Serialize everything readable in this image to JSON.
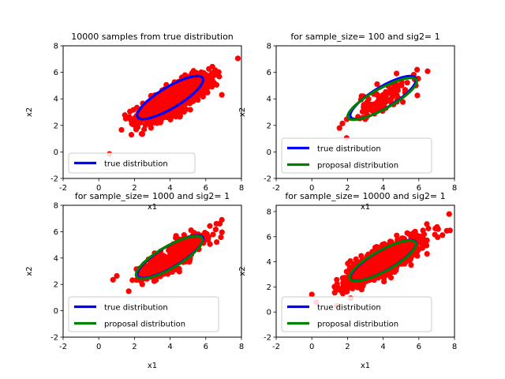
{
  "chart_data": [
    {
      "type": "scatter",
      "title": "10000 samples from true distribution",
      "xlabel": "x1",
      "ylabel": "x2",
      "xlim": [
        -2,
        8
      ],
      "ylim": [
        -2,
        8
      ],
      "xticks": [
        "-2",
        "0",
        "2",
        "4",
        "6",
        "8"
      ],
      "yticks": [
        "-2",
        "0",
        "2",
        "4",
        "6",
        "8"
      ],
      "scatter": {
        "color": "#ff0000",
        "cluster": {
          "mean": [
            4.3,
            4.1
          ],
          "sd": [
            0.95,
            0.85
          ],
          "corr": 0.82,
          "n": 1400
        },
        "outliers": [
          [
            0.6,
            -0.15
          ],
          [
            7.8,
            7.05
          ],
          [
            1.8,
            2.4
          ],
          [
            6.9,
            4.3
          ]
        ]
      },
      "series": [
        {
          "name": "true distribution",
          "color": "#0000ff",
          "ellipse": {
            "center": [
              4,
              4.1
            ],
            "rx": 2.35,
            "ry": 0.72,
            "angle_deg": 40.5
          }
        }
      ],
      "legend": "lower-left"
    },
    {
      "type": "scatter",
      "title": "for sample_size= 100 and sig2= 1",
      "xlabel": "x1",
      "ylabel": "x2",
      "xlim": [
        -2,
        8
      ],
      "ylim": [
        -2,
        8
      ],
      "xticks": [
        "-2",
        "0",
        "2",
        "4",
        "6",
        "8"
      ],
      "yticks": [
        "-2",
        "0",
        "2",
        "4",
        "6",
        "8"
      ],
      "scatter": {
        "color": "#ff0000",
        "cluster": {
          "mean": [
            4.1,
            4.0
          ],
          "sd": [
            1.0,
            0.9
          ],
          "corr": 0.8,
          "n": 100
        },
        "outliers": [
          [
            1.95,
            1.05
          ],
          [
            1.55,
            1.8
          ]
        ]
      },
      "series": [
        {
          "name": "true distribution",
          "color": "#0000ff",
          "ellipse": {
            "center": [
              4,
              4.1
            ],
            "rx": 2.35,
            "ry": 0.72,
            "angle_deg": 40.5
          }
        },
        {
          "name": "proposal distribution",
          "color": "#008000",
          "ellipse": {
            "center": [
              3.95,
              4.0
            ],
            "rx": 2.4,
            "ry": 0.7,
            "angle_deg": 38
          }
        }
      ],
      "legend": "lower-left"
    },
    {
      "type": "scatter",
      "title": "for sample_size= 1000 and sig2= 1",
      "xlabel": "x1",
      "ylabel": "x2",
      "xlim": [
        -2,
        8
      ],
      "ylim": [
        -2,
        8
      ],
      "xticks": [
        "-2",
        "0",
        "2",
        "4",
        "6",
        "8"
      ],
      "yticks": [
        "-2",
        "0",
        "2",
        "4",
        "6",
        "8"
      ],
      "scatter": {
        "color": "#ff0000",
        "cluster": {
          "mean": [
            4.1,
            4.05
          ],
          "sd": [
            0.95,
            0.85
          ],
          "corr": 0.82,
          "n": 500
        },
        "outliers": [
          [
            6.9,
            6.9
          ],
          [
            0.8,
            2.35
          ]
        ]
      },
      "series": [
        {
          "name": "true distribution",
          "color": "#0000ff",
          "ellipse": {
            "center": [
              4,
              4.1
            ],
            "rx": 2.35,
            "ry": 0.72,
            "angle_deg": 40.5
          }
        },
        {
          "name": "proposal distribution",
          "color": "#008000",
          "ellipse": {
            "center": [
              3.95,
              4.05
            ],
            "rx": 2.35,
            "ry": 0.75,
            "angle_deg": 40
          }
        }
      ],
      "legend": "lower-left"
    },
    {
      "type": "scatter",
      "title": "for sample_size= 10000 and sig2= 1",
      "xlabel": "x1",
      "ylabel": "x2",
      "xlim": [
        -2,
        8
      ],
      "ylim": [
        -2,
        8.5
      ],
      "xticks": [
        "-2",
        "0",
        "2",
        "4",
        "6",
        "8"
      ],
      "yticks": [
        "-2",
        "0",
        "2",
        "4",
        "6",
        "8"
      ],
      "scatter": {
        "color": "#ff0000",
        "cluster": {
          "mean": [
            4.0,
            4.05
          ],
          "sd": [
            1.0,
            0.9
          ],
          "corr": 0.82,
          "n": 1400
        },
        "outliers": [
          [
            0,
            1.4
          ],
          [
            7.7,
            7.8
          ],
          [
            7.75,
            6.5
          ],
          [
            1.4,
            0.5
          ]
        ]
      },
      "series": [
        {
          "name": "true distribution",
          "color": "#0000ff",
          "ellipse": {
            "center": [
              4,
              4.1
            ],
            "rx": 2.35,
            "ry": 0.72,
            "angle_deg": 40.5
          }
        },
        {
          "name": "proposal distribution",
          "color": "#008000",
          "ellipse": {
            "center": [
              3.98,
              4.08
            ],
            "rx": 2.35,
            "ry": 0.74,
            "angle_deg": 40
          }
        }
      ],
      "legend": "lower-left"
    }
  ]
}
